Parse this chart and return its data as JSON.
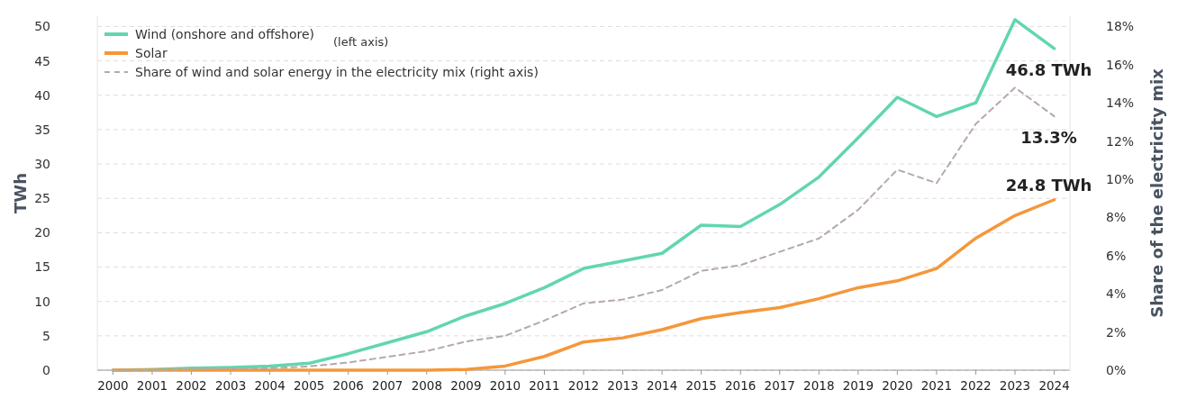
{
  "chart_data": {
    "type": "line",
    "ylabel": "TWh",
    "y2label": "Share of the electricity mix",
    "categories": [
      "2000",
      "2001",
      "2002",
      "2003",
      "2004",
      "2005",
      "2006",
      "2007",
      "2008",
      "2009",
      "2010",
      "2011",
      "2012",
      "2013",
      "2014",
      "2015",
      "2016",
      "2017",
      "2018",
      "2019",
      "2020",
      "2021",
      "2022",
      "2023",
      "2024"
    ],
    "series": [
      {
        "name": "Wind (onshore and offshore)",
        "color": "#62d6ae",
        "values": [
          0,
          0.1,
          0.3,
          0.4,
          0.6,
          1.0,
          2.4,
          4.0,
          5.6,
          7.9,
          9.7,
          12.0,
          14.8,
          15.9,
          17.0,
          21.1,
          20.9,
          24.1,
          28.1,
          33.8,
          39.7,
          36.9,
          38.9,
          51.0,
          46.8
        ]
      },
      {
        "name": "Solar",
        "color": "#f5973a",
        "values": [
          0,
          0,
          0,
          0,
          0,
          0,
          0,
          0,
          0,
          0.1,
          0.6,
          2.0,
          4.1,
          4.7,
          5.9,
          7.5,
          8.4,
          9.1,
          10.4,
          12.0,
          13.0,
          14.8,
          19.2,
          22.5,
          24.8
        ]
      },
      {
        "name": "Share of wind and solar energy in the electricity mix (right axis)",
        "color": "#b5a9aa",
        "axis": "y2",
        "line_style": "dashed",
        "values": [
          0,
          0,
          0.05,
          0.1,
          0.1,
          0.2,
          0.4,
          0.7,
          1.0,
          1.5,
          1.8,
          2.6,
          3.5,
          3.7,
          4.2,
          5.2,
          5.5,
          6.2,
          6.9,
          8.4,
          10.5,
          9.8,
          12.9,
          14.8,
          13.3
        ]
      }
    ],
    "ylim": [
      0,
      51.5
    ],
    "yticks": [
      0,
      5,
      10,
      15,
      20,
      25,
      30,
      35,
      40,
      45,
      50
    ],
    "y2lim": [
      0,
      18.54
    ],
    "y2ticks": [
      {
        "value": 0,
        "label": "0%"
      },
      {
        "value": 2,
        "label": "2%"
      },
      {
        "value": 4,
        "label": "4%"
      },
      {
        "value": 6,
        "label": "6%"
      },
      {
        "value": 8,
        "label": "8%"
      },
      {
        "value": 10,
        "label": "10%"
      },
      {
        "value": 12,
        "label": "12%"
      },
      {
        "value": 14,
        "label": "14%"
      },
      {
        "value": 16,
        "label": "16%"
      },
      {
        "value": 18,
        "label": "18%"
      }
    ],
    "grid": "y",
    "legend": "top left",
    "line_style": "solid",
    "marker": "none",
    "annotations": [
      "(left axis)",
      {
        "text": "46.8 TWh",
        "x": "2024",
        "y": 46.8
      },
      "13.3%",
      {
        "text": "24.8 TWh",
        "x": "2024",
        "y": 24.8
      }
    ]
  }
}
